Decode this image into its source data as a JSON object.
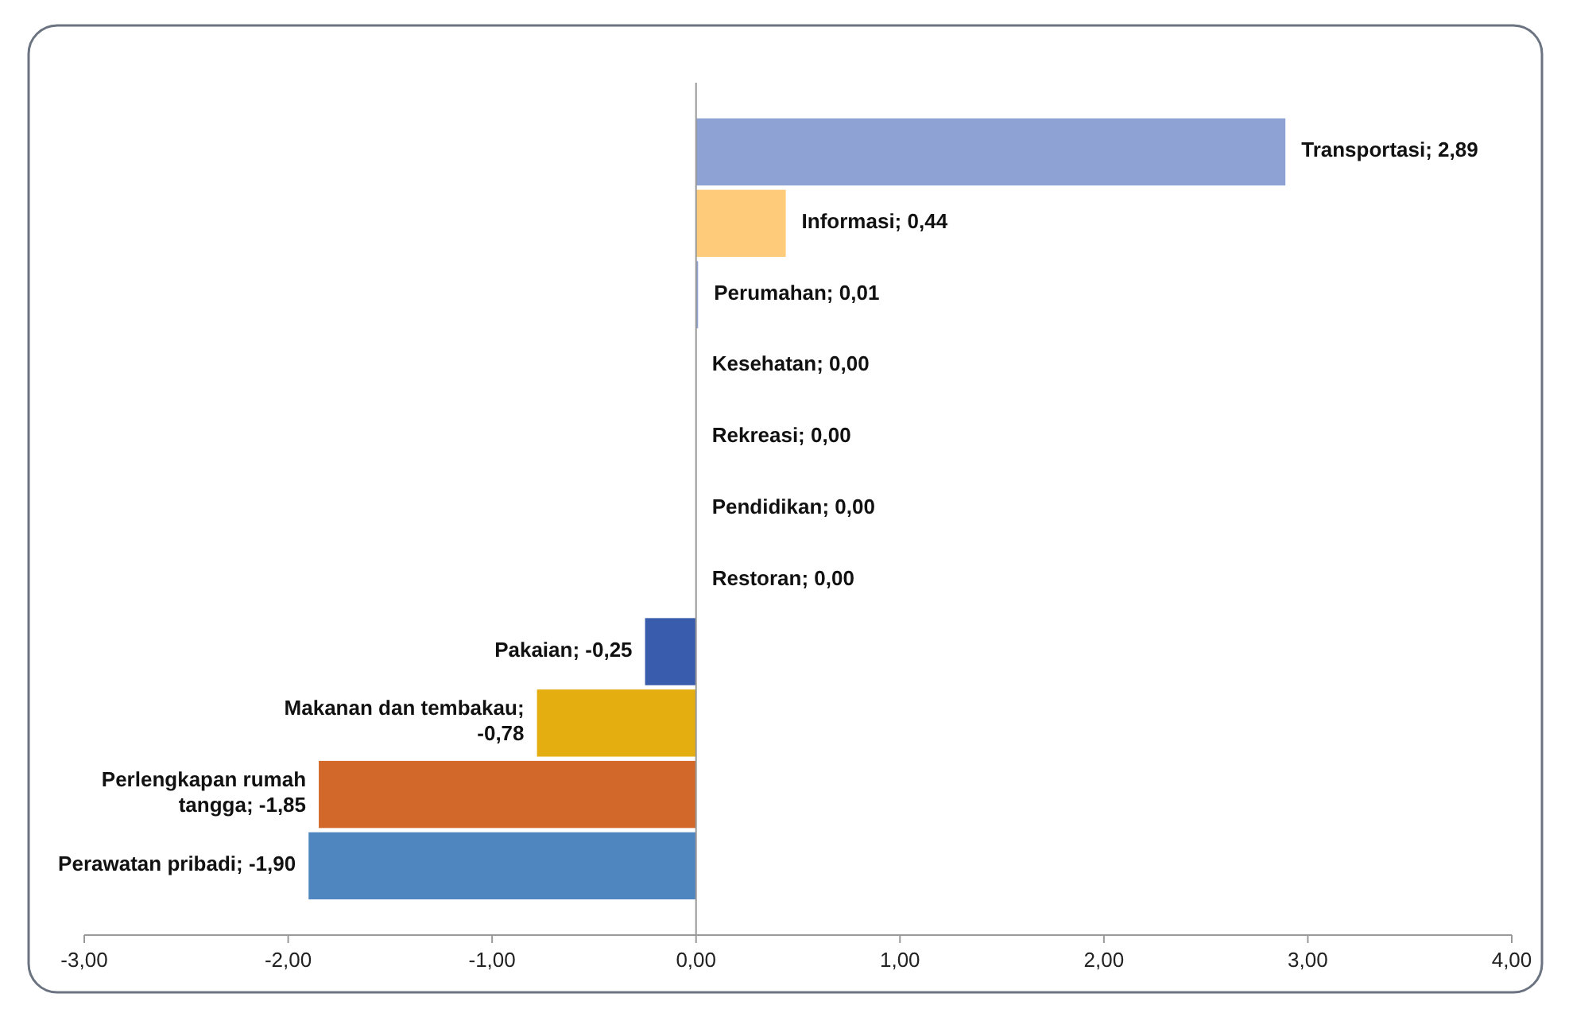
{
  "chart_data": {
    "type": "bar",
    "orientation": "horizontal",
    "categories": [
      null,
      null,
      null,
      null,
      null,
      null,
      null,
      null,
      null,
      null,
      null
    ],
    "values": [
      2.89,
      0.44,
      0.01,
      0,
      0,
      0,
      0,
      -0.25,
      -0.78,
      -1.85,
      -1.9
    ],
    "value_labels": [
      "Transportasi; 2,89",
      "Informasi; 0,44",
      "Perumahan; 0,01",
      "Kesehatan; 0,00",
      "Rekreasi; 0,00",
      "Pendidikan; 0,00",
      "Restoran; 0,00",
      "Pakaian; -0,25",
      "Makanan dan tembakau; -0,78",
      "Perlengkapan rumah tangga; -1,85",
      "Perawatan pribadi; -1,90"
    ],
    "colors": [
      "#8fa2d4",
      "#fdcb7a",
      "#8fa2d4",
      "#8fa2d4",
      "#8fa2d4",
      "#8fa2d4",
      "#8fa2d4",
      "#3a5cad",
      "#e5ae10",
      "#d2692a",
      "#4f86c0"
    ],
    "xlim": [
      -3,
      4
    ],
    "xticks": [
      {
        "value": -3,
        "label": "-3,00"
      },
      {
        "value": -2,
        "label": "-2,00"
      },
      {
        "value": -1,
        "label": "-1,00"
      },
      {
        "value": 0,
        "label": "0,00"
      },
      {
        "value": 1,
        "label": "1,00"
      },
      {
        "value": 2,
        "label": "2,00"
      },
      {
        "value": 3,
        "label": "3,00"
      },
      {
        "value": 4,
        "label": "4,00"
      }
    ]
  }
}
